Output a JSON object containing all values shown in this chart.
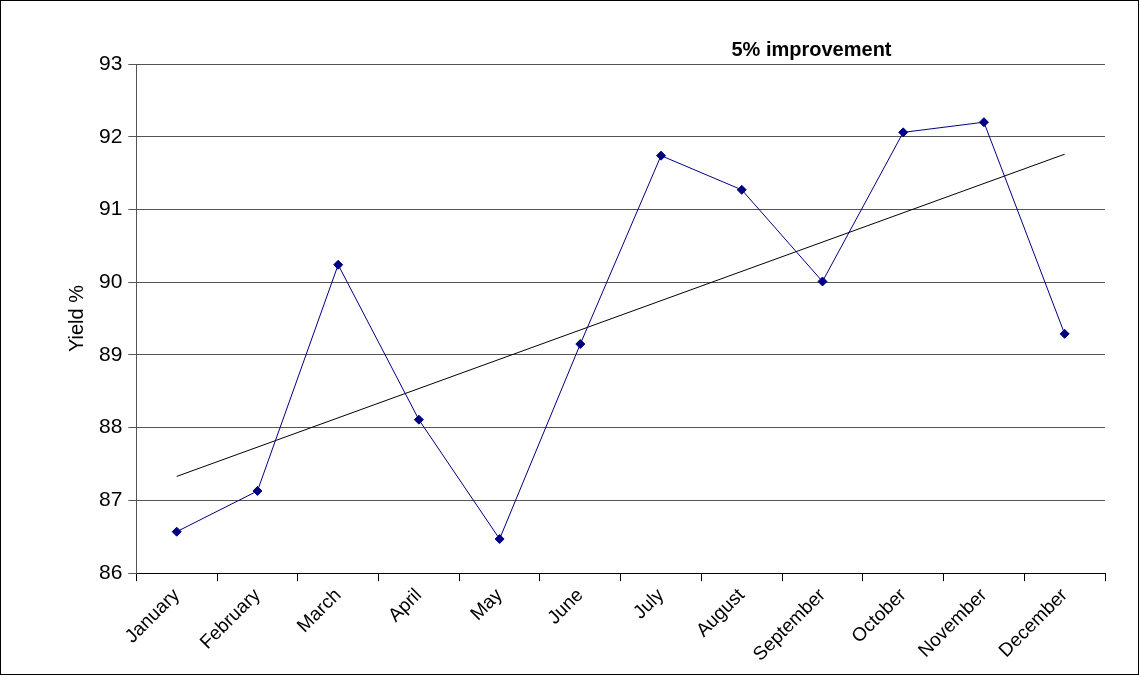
{
  "chart_data": {
    "type": "line",
    "title": "5% improvement",
    "ylabel": "Yield %",
    "categories": [
      "January",
      "February",
      "March",
      "April",
      "May",
      "June",
      "July",
      "August",
      "September",
      "October",
      "November",
      "December"
    ],
    "series": [
      {
        "color": "#000080",
        "marker": "diamond",
        "values": [
          86.57,
          87.13,
          90.24,
          88.11,
          86.47,
          89.15,
          91.74,
          91.27,
          90.01,
          92.06,
          92.2,
          89.29
        ]
      },
      {
        "type": "line",
        "color": "#000000",
        "marker": "none",
        "x": [
          "January",
          "December"
        ],
        "values": [
          87.33,
          91.76
        ]
      }
    ],
    "ylim": [
      86,
      93
    ],
    "yticks": [
      86,
      87,
      88,
      89,
      90,
      91,
      92,
      93
    ],
    "grid": "y",
    "legend": false
  }
}
